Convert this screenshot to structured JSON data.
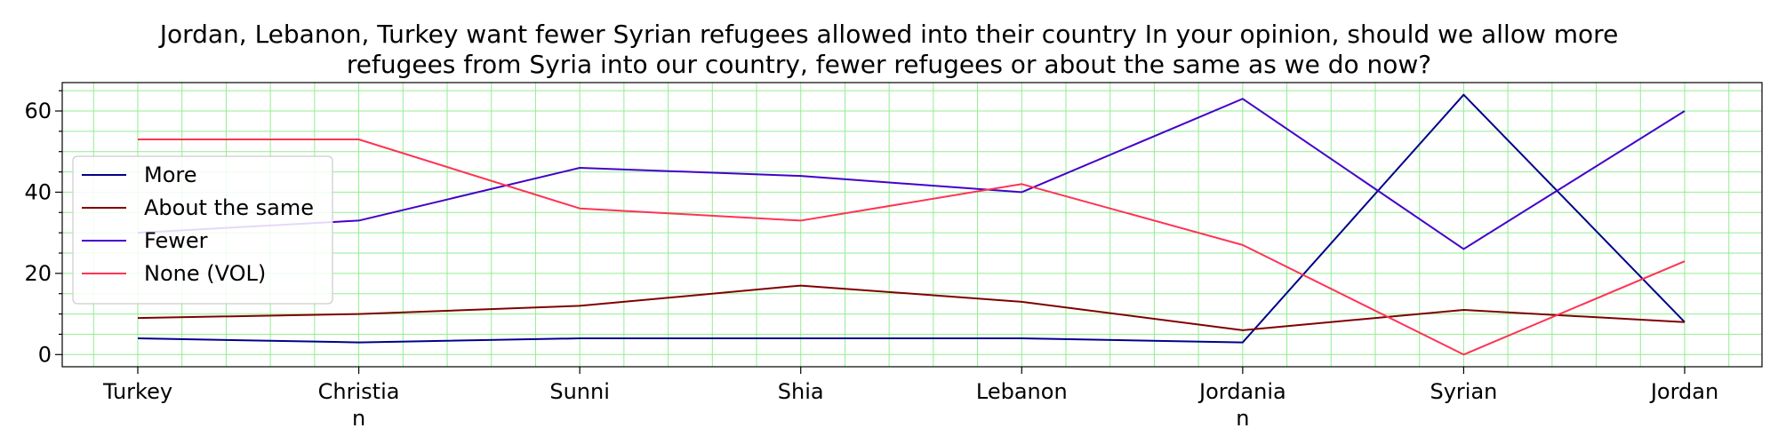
{
  "chart_data": {
    "type": "line",
    "title_lines": [
      "Jordan, Lebanon, Turkey want fewer Syrian refugees allowed into their country In your opinion, should we allow more",
      "refugees from Syria into our country, fewer refugees or about the same as we do now?"
    ],
    "categories": [
      "Turkey",
      "Christian",
      "Sunni",
      "Shia",
      "Lebanon",
      "Jordanian",
      "Syrian",
      "Jordan"
    ],
    "category_label_lines": [
      [
        "Turkey"
      ],
      [
        "Christia",
        "n"
      ],
      [
        "Sunni"
      ],
      [
        "Shia"
      ],
      [
        "Lebanon"
      ],
      [
        "Jordania",
        "n"
      ],
      [
        "Syrian"
      ],
      [
        "Jordan"
      ]
    ],
    "xlabel": "",
    "ylabel": "",
    "ylim": [
      -3,
      67
    ],
    "yticks": [
      0,
      20,
      40,
      60
    ],
    "grid": true,
    "legend_placement": "center-left",
    "series": [
      {
        "name": "More",
        "color": "#00008b",
        "values": [
          4,
          3,
          4,
          4,
          4,
          3,
          64,
          8
        ]
      },
      {
        "name": "About the same",
        "color": "#800000",
        "values": [
          9,
          10,
          12,
          17,
          13,
          6,
          11,
          8
        ]
      },
      {
        "name": "Fewer",
        "color": "#4400cc",
        "values": [
          30,
          33,
          46,
          44,
          40,
          63,
          26,
          60
        ]
      },
      {
        "name": "None (VOL)",
        "color": "#ff3355",
        "values": [
          53,
          53,
          36,
          33,
          42,
          27,
          0,
          23
        ]
      }
    ],
    "grid_color": "#90ee90"
  }
}
